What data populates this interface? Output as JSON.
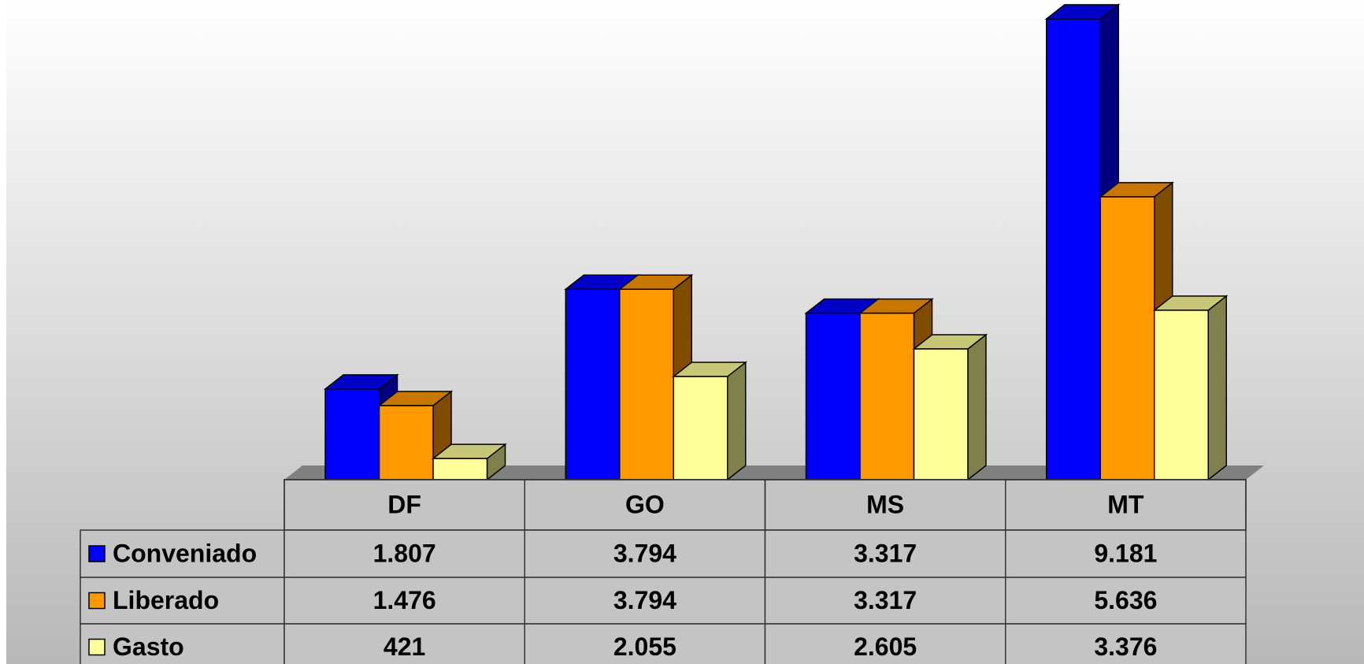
{
  "chart_data": {
    "type": "bar3d",
    "categories": [
      "DF",
      "GO",
      "MS",
      "MT"
    ],
    "series": [
      {
        "name": "Conveniado",
        "color": "#0000ff",
        "values": [
          1807,
          3794,
          3317,
          9181
        ],
        "value_labels": [
          "1.807",
          "3.794",
          "3.317",
          "9.181"
        ]
      },
      {
        "name": "Liberado",
        "color": "#ff9900",
        "values": [
          1476,
          3794,
          3317,
          5636
        ],
        "value_labels": [
          "1.476",
          "3.794",
          "3.317",
          "5.636"
        ]
      },
      {
        "name": "Gasto",
        "color": "#ffff99",
        "values": [
          421,
          2055,
          2605,
          3376
        ],
        "value_labels": [
          "421",
          "2.055",
          "2.605",
          "3.376"
        ]
      }
    ]
  }
}
